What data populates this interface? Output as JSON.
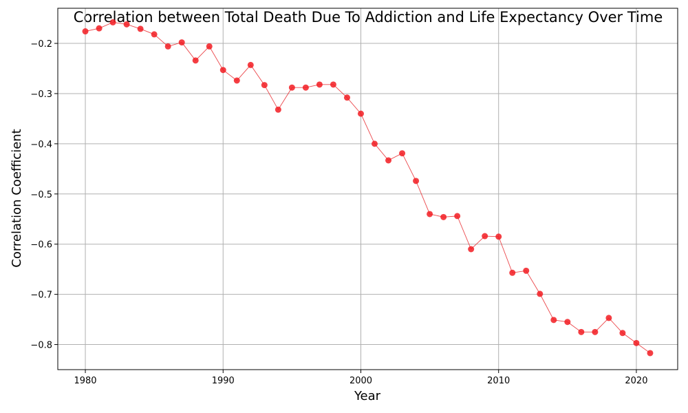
{
  "chart_data": {
    "type": "line",
    "title": "Correlation between Total Death Due To Addiction and Life Expectancy Over Time",
    "xlabel": "Year",
    "ylabel": "Correlation Coefficient",
    "xlim": [
      1978,
      2023
    ],
    "ylim": [
      -0.85,
      -0.13
    ],
    "xticks": [
      1980,
      1990,
      2000,
      2010,
      2020
    ],
    "yticks": [
      -0.8,
      -0.7,
      -0.6,
      -0.5,
      -0.4,
      -0.3,
      -0.2
    ],
    "grid": true,
    "line_color": "#e8262a",
    "marker_color": "#f21c22",
    "series": [
      {
        "x": [
          1980,
          1981,
          1982,
          1983,
          1984,
          1985,
          1986,
          1987,
          1988,
          1989,
          1990,
          1991,
          1992,
          1993,
          1994,
          1995,
          1996,
          1997,
          1998,
          1999,
          2000,
          2001,
          2002,
          2003,
          2004,
          2005,
          2006,
          2007,
          2008,
          2009,
          2010,
          2011,
          2012,
          2013,
          2014,
          2015,
          2016,
          2017,
          2018,
          2019,
          2020,
          2021
        ],
        "values": [
          -0.176,
          -0.17,
          -0.158,
          -0.162,
          -0.171,
          -0.182,
          -0.206,
          -0.198,
          -0.234,
          -0.206,
          -0.253,
          -0.274,
          -0.243,
          -0.283,
          -0.332,
          -0.288,
          -0.288,
          -0.282,
          -0.282,
          -0.308,
          -0.34,
          -0.4,
          -0.433,
          -0.419,
          -0.474,
          -0.54,
          -0.546,
          -0.544,
          -0.61,
          -0.584,
          -0.585,
          -0.657,
          -0.653,
          -0.699,
          -0.751,
          -0.755,
          -0.775,
          -0.775,
          -0.747,
          -0.777,
          -0.797,
          -0.817
        ]
      }
    ]
  }
}
